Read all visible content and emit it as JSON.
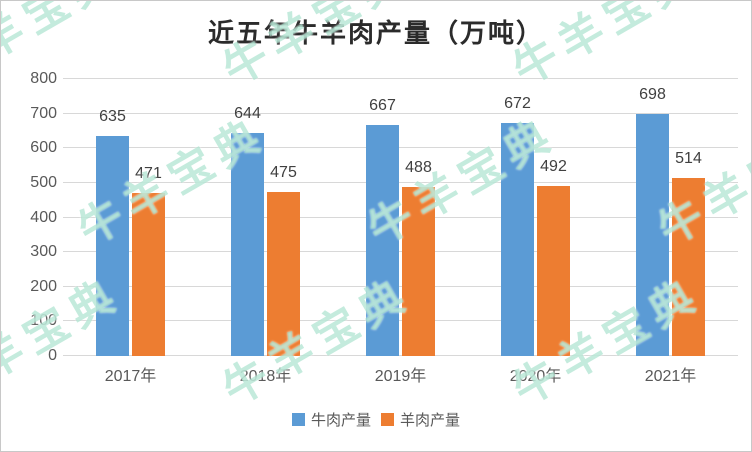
{
  "title": "近五年牛羊肉产量（万吨）",
  "chart_data": {
    "type": "bar",
    "title": "近五年牛羊肉产量（万吨）",
    "categories": [
      "2017年",
      "2018年",
      "2019年",
      "2020年",
      "2021年"
    ],
    "series": [
      {
        "id": "beef",
        "name": "牛肉产量",
        "color": "#5B9BD5",
        "values": [
          635,
          644,
          667,
          672,
          698
        ]
      },
      {
        "id": "lamb",
        "name": "羊肉产量",
        "color": "#ED7D31",
        "values": [
          471,
          475,
          488,
          492,
          514
        ]
      }
    ],
    "ylim": [
      0,
      800
    ],
    "ytick_step": 100,
    "yticks": [
      0,
      100,
      200,
      300,
      400,
      500,
      600,
      700,
      800
    ],
    "grid": true,
    "data_labels": true,
    "legend_position": "bottom"
  },
  "watermark": {
    "text": "牛羊宝典",
    "color": "rgba(137, 216, 187, 0.5)"
  },
  "colors": {
    "beef_bar": "#5B9BD5",
    "lamb_bar": "#ED7D31",
    "gridline": "#D8D8D8",
    "axis_text": "#595959",
    "value_text": "#404040",
    "frame_border": "#C8C8C8"
  }
}
